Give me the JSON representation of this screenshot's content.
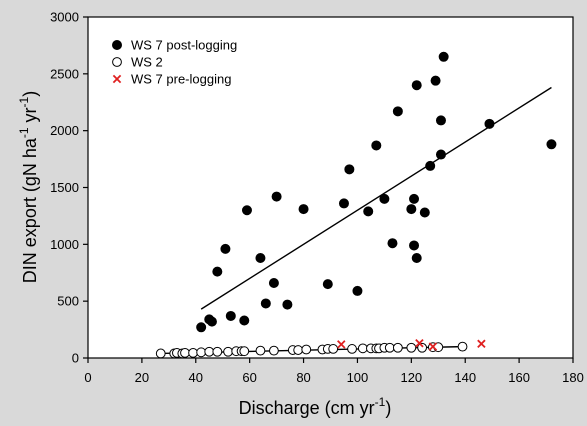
{
  "chart_data": {
    "type": "scatter",
    "xlabel": "Discharge (cm yr",
    "xlabel_sup": "-1",
    "xlabel_tail": ")",
    "ylabel_main": "DIN export (gN ha",
    "ylabel_sup1": "-1",
    "ylabel_mid": " yr",
    "ylabel_sup2": "-1",
    "ylabel_tail": ")",
    "xlim": [
      0,
      180
    ],
    "ylim": [
      0,
      3000
    ],
    "x_ticks": [
      0,
      20,
      40,
      60,
      80,
      100,
      120,
      140,
      160,
      180
    ],
    "x_tick_labels": [
      "0",
      "20",
      "40",
      "60",
      "80",
      "100",
      "120",
      "140",
      "160",
      "180"
    ],
    "y_ticks": [
      0,
      500,
      1000,
      1500,
      2000,
      2500,
      3000
    ],
    "y_tick_labels": [
      "0",
      "500",
      "1000",
      "1500",
      "2000",
      "2500",
      "3000"
    ],
    "grid": false,
    "legend_position": "top-left",
    "series": [
      {
        "name": "WS 7 post-logging",
        "marker": "filled-circle",
        "color": "#000000",
        "points": [
          [
            42,
            270
          ],
          [
            45,
            340
          ],
          [
            46,
            320
          ],
          [
            48,
            760
          ],
          [
            51,
            960
          ],
          [
            53,
            370
          ],
          [
            58,
            330
          ],
          [
            59,
            1300
          ],
          [
            64,
            880
          ],
          [
            66,
            480
          ],
          [
            69,
            660
          ],
          [
            70,
            1420
          ],
          [
            74,
            470
          ],
          [
            80,
            1310
          ],
          [
            89,
            650
          ],
          [
            95,
            1360
          ],
          [
            97,
            1660
          ],
          [
            100,
            590
          ],
          [
            104,
            1290
          ],
          [
            107,
            1870
          ],
          [
            110,
            1400
          ],
          [
            113,
            1010
          ],
          [
            115,
            2170
          ],
          [
            120,
            1310
          ],
          [
            121,
            990
          ],
          [
            121,
            1400
          ],
          [
            122,
            2400
          ],
          [
            122,
            880
          ],
          [
            125,
            1280
          ],
          [
            127,
            1690
          ],
          [
            129,
            2440
          ],
          [
            131,
            2090
          ],
          [
            131,
            1790
          ],
          [
            132,
            2650
          ],
          [
            149,
            2060
          ],
          [
            172,
            1880
          ]
        ],
        "fit_line": [
          [
            42,
            430
          ],
          [
            172,
            2380
          ]
        ]
      },
      {
        "name": "WS 2",
        "marker": "open-circle",
        "color": "#000000",
        "points": [
          [
            27,
            40
          ],
          [
            32,
            40
          ],
          [
            33,
            45
          ],
          [
            35,
            40
          ],
          [
            36,
            45
          ],
          [
            39,
            45
          ],
          [
            42,
            50
          ],
          [
            45,
            55
          ],
          [
            48,
            55
          ],
          [
            52,
            55
          ],
          [
            55,
            60
          ],
          [
            57,
            60
          ],
          [
            58,
            60
          ],
          [
            64,
            65
          ],
          [
            69,
            65
          ],
          [
            76,
            70
          ],
          [
            78,
            70
          ],
          [
            81,
            75
          ],
          [
            87,
            75
          ],
          [
            89,
            80
          ],
          [
            91,
            80
          ],
          [
            98,
            80
          ],
          [
            102,
            85
          ],
          [
            105,
            85
          ],
          [
            107,
            85
          ],
          [
            108,
            85
          ],
          [
            110,
            90
          ],
          [
            112,
            90
          ],
          [
            115,
            90
          ],
          [
            120,
            90
          ],
          [
            124,
            90
          ],
          [
            128,
            95
          ],
          [
            130,
            95
          ],
          [
            139,
            100
          ]
        ],
        "fit_line": [
          [
            27,
            40
          ],
          [
            139,
            100
          ]
        ]
      },
      {
        "name": "WS 7 pre-logging",
        "marker": "x",
        "color": "#e02020",
        "points": [
          [
            94,
            120
          ],
          [
            123,
            130
          ],
          [
            128,
            100
          ],
          [
            146,
            125
          ]
        ]
      }
    ]
  }
}
